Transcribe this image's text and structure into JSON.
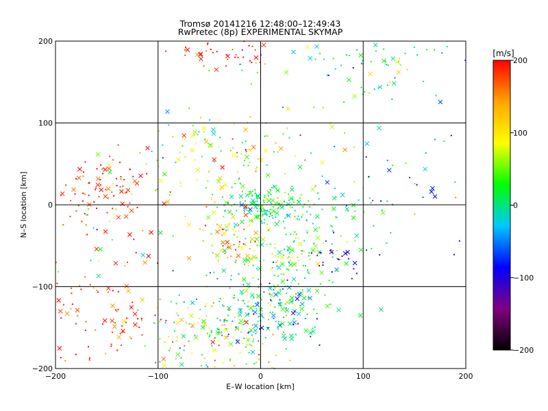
{
  "chart_data": {
    "type": "scatter",
    "title_line1": "Tromsø 20141216 12:48:00–12:49:43",
    "title_line2": "RwPretec (8p) EXPERIMENTAL SKYMAP",
    "xlabel": "E–W location [km]",
    "ylabel": "N–S location [km]",
    "xlim": [
      -200,
      200
    ],
    "ylim": [
      -200,
      200
    ],
    "x_ticks": [
      -200,
      -100,
      0,
      100,
      200
    ],
    "y_ticks": [
      -200,
      -100,
      0,
      100,
      200
    ],
    "x_tick_labels": [
      "−200",
      "−100",
      "0",
      "100",
      "200"
    ],
    "y_tick_labels": [
      "−200",
      "−100",
      "0",
      "100",
      "200"
    ],
    "grid": true,
    "colorbar": {
      "label": "[m/s]",
      "range": [
        -200,
        200
      ],
      "ticks": [
        200,
        100,
        0,
        -100,
        -200
      ],
      "tick_labels": [
        "200",
        "100",
        "0",
        "−100",
        "−200"
      ],
      "colors": [
        "#000000",
        "#800080",
        "#0000ff",
        "#00c8ff",
        "#00ff00",
        "#ffff00",
        "#ffa500",
        "#ff0000"
      ]
    },
    "markers": [
      "cross",
      "dot"
    ],
    "clusters": [
      {
        "cx": -40,
        "cy": 185,
        "sx": 25,
        "sy": 10,
        "n": 40,
        "v": 190,
        "dv": 20
      },
      {
        "cx": 110,
        "cy": 170,
        "sx": 50,
        "sy": 20,
        "n": 70,
        "v": 20,
        "dv": 50
      },
      {
        "cx": -150,
        "cy": 20,
        "sx": 25,
        "sy": 20,
        "n": 80,
        "v": 190,
        "dv": 20
      },
      {
        "cx": -30,
        "cy": 60,
        "sx": 50,
        "sy": 35,
        "n": 160,
        "v": 70,
        "dv": 60
      },
      {
        "cx": 0,
        "cy": 0,
        "sx": 20,
        "sy": 10,
        "n": 120,
        "v": 10,
        "dv": 25
      },
      {
        "cx": 50,
        "cy": -5,
        "sx": 40,
        "sy": 15,
        "n": 60,
        "v": 5,
        "dv": 35
      },
      {
        "cx": -30,
        "cy": -40,
        "sx": 15,
        "sy": 15,
        "n": 60,
        "v": 140,
        "dv": 40
      },
      {
        "cx": 20,
        "cy": -60,
        "sx": 35,
        "sy": 25,
        "n": 140,
        "v": 40,
        "dv": 40
      },
      {
        "cx": 75,
        "cy": -60,
        "sx": 15,
        "sy": 15,
        "n": 25,
        "v": -100,
        "dv": 30
      },
      {
        "cx": 10,
        "cy": -130,
        "sx": 30,
        "sy": 25,
        "n": 200,
        "v": -10,
        "dv": 40
      },
      {
        "cx": -50,
        "cy": -160,
        "sx": 35,
        "sy": 25,
        "n": 160,
        "v": 70,
        "dv": 60
      },
      {
        "cx": -150,
        "cy": -140,
        "sx": 30,
        "sy": 30,
        "n": 80,
        "v": 185,
        "dv": 25
      },
      {
        "cx": 150,
        "cy": 30,
        "sx": 40,
        "sy": 60,
        "n": 40,
        "v": -30,
        "dv": 70
      },
      {
        "cx": -140,
        "cy": -50,
        "sx": 40,
        "sy": 40,
        "n": 40,
        "v": 90,
        "dv": 100
      }
    ]
  }
}
